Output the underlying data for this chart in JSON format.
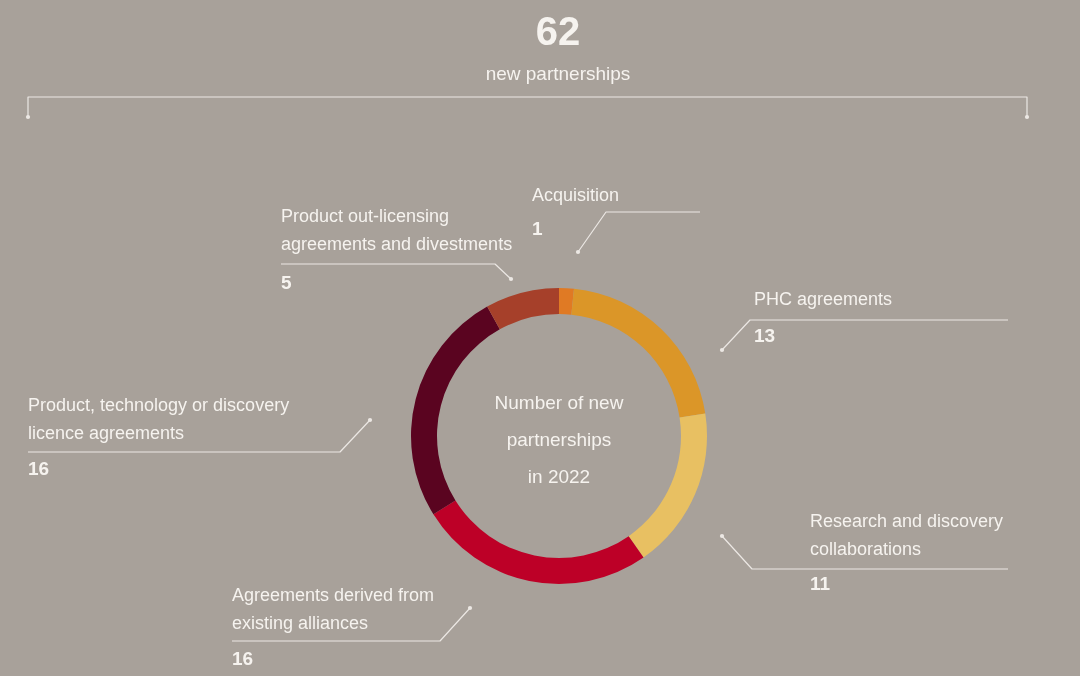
{
  "chart_data": {
    "type": "donut",
    "title": "62",
    "subtitle": "new partnerships",
    "annotations": [
      "Number of new partnerships in 2022"
    ],
    "categories": [
      "Acquisition",
      "PHC agreements",
      "Research and discovery collaborations",
      "Agreements derived from existing alliances",
      "Product, technology or discovery licence agreements",
      "Product out-licensing agreements and divestments"
    ],
    "values": [
      1,
      13,
      11,
      16,
      16,
      5
    ],
    "colors": [
      "#e07a24",
      "#db9628",
      "#e8c062",
      "#bd0027",
      "#5a0420",
      "#a6402a"
    ],
    "data_labels": true
  }
}
